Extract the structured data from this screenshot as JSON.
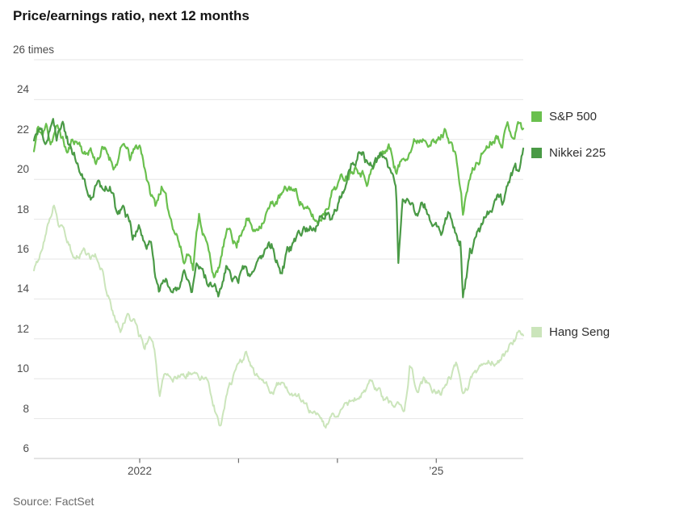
{
  "chart_data": {
    "type": "line",
    "title": "Price/earnings ratio, next 12 months",
    "grid": true,
    "legend_position": "right",
    "xlim": [
      2020.93,
      2025.88
    ],
    "ylim": [
      6,
      26
    ],
    "y_axis": {
      "ticks": [
        {
          "value": 26,
          "label": "26 times"
        },
        {
          "value": 24,
          "label": "24"
        },
        {
          "value": 22,
          "label": "22"
        },
        {
          "value": 20,
          "label": "20"
        },
        {
          "value": 18,
          "label": "18"
        },
        {
          "value": 16,
          "label": "16"
        },
        {
          "value": 14,
          "label": "14"
        },
        {
          "value": 12,
          "label": "12"
        },
        {
          "value": 10,
          "label": "10"
        },
        {
          "value": 8,
          "label": "8"
        },
        {
          "value": 6,
          "label": "6"
        }
      ]
    },
    "x_axis": {
      "ticks": [
        {
          "value": 2022,
          "label": "2022"
        },
        {
          "value": 2023,
          "label": ""
        },
        {
          "value": 2024,
          "label": ""
        },
        {
          "value": 2025,
          "label": "’25"
        }
      ]
    },
    "series": [
      {
        "id": "sp500",
        "name": "S&P 500",
        "color": "#6ac04e",
        "points": [
          [
            2020.93,
            21.4
          ],
          [
            2020.97,
            22.5
          ],
          [
            2021.02,
            22.2
          ],
          [
            2021.06,
            22.7
          ],
          [
            2021.1,
            21.9
          ],
          [
            2021.15,
            22.6
          ],
          [
            2021.2,
            22.3
          ],
          [
            2021.27,
            21.3
          ],
          [
            2021.33,
            22.0
          ],
          [
            2021.4,
            21.8
          ],
          [
            2021.45,
            21.2
          ],
          [
            2021.5,
            21.6
          ],
          [
            2021.55,
            20.9
          ],
          [
            2021.62,
            21.5
          ],
          [
            2021.68,
            21.2
          ],
          [
            2021.75,
            20.7
          ],
          [
            2021.8,
            21.3
          ],
          [
            2021.85,
            21.7
          ],
          [
            2021.9,
            21.0
          ],
          [
            2021.95,
            21.4
          ],
          [
            2022.0,
            21.7
          ],
          [
            2022.06,
            20.5
          ],
          [
            2022.1,
            19.4
          ],
          [
            2022.16,
            18.7
          ],
          [
            2022.22,
            19.7
          ],
          [
            2022.3,
            18.2
          ],
          [
            2022.38,
            17.3
          ],
          [
            2022.45,
            15.8
          ],
          [
            2022.5,
            16.6
          ],
          [
            2022.54,
            15.6
          ],
          [
            2022.6,
            18.3
          ],
          [
            2022.68,
            16.7
          ],
          [
            2022.74,
            15.4
          ],
          [
            2022.79,
            15.2
          ],
          [
            2022.86,
            16.9
          ],
          [
            2022.92,
            17.5
          ],
          [
            2022.98,
            16.7
          ],
          [
            2023.08,
            18.2
          ],
          [
            2023.16,
            17.3
          ],
          [
            2023.28,
            18.4
          ],
          [
            2023.42,
            19.1
          ],
          [
            2023.54,
            19.6
          ],
          [
            2023.64,
            18.9
          ],
          [
            2023.72,
            18.2
          ],
          [
            2023.8,
            17.8
          ],
          [
            2023.88,
            18.6
          ],
          [
            2023.96,
            19.6
          ],
          [
            2024.06,
            20.1
          ],
          [
            2024.2,
            20.9
          ],
          [
            2024.3,
            20.1
          ],
          [
            2024.44,
            21.2
          ],
          [
            2024.52,
            21.7
          ],
          [
            2024.6,
            20.4
          ],
          [
            2024.7,
            21.4
          ],
          [
            2024.78,
            21.9
          ],
          [
            2024.9,
            22.3
          ],
          [
            2025.0,
            21.8
          ],
          [
            2025.1,
            22.5
          ],
          [
            2025.16,
            21.8
          ],
          [
            2025.22,
            20.5
          ],
          [
            2025.27,
            18.3
          ],
          [
            2025.33,
            19.9
          ],
          [
            2025.4,
            20.7
          ],
          [
            2025.5,
            21.6
          ],
          [
            2025.6,
            22.3
          ],
          [
            2025.66,
            22.1
          ],
          [
            2025.72,
            22.7
          ],
          [
            2025.78,
            22.3
          ],
          [
            2025.84,
            22.9
          ],
          [
            2025.88,
            22.6
          ]
        ]
      },
      {
        "id": "nikkei225",
        "name": "Nikkei 225",
        "color": "#4a9a46",
        "points": [
          [
            2020.93,
            21.9
          ],
          [
            2020.98,
            22.6
          ],
          [
            2021.04,
            21.8
          ],
          [
            2021.08,
            22.4
          ],
          [
            2021.12,
            23.3
          ],
          [
            2021.16,
            22.2
          ],
          [
            2021.22,
            22.8
          ],
          [
            2021.28,
            21.8
          ],
          [
            2021.34,
            21.1
          ],
          [
            2021.4,
            20.3
          ],
          [
            2021.46,
            19.8
          ],
          [
            2021.52,
            19.3
          ],
          [
            2021.58,
            19.9
          ],
          [
            2021.64,
            19.2
          ],
          [
            2021.7,
            19.8
          ],
          [
            2021.76,
            18.4
          ],
          [
            2021.82,
            18.7
          ],
          [
            2021.88,
            17.9
          ],
          [
            2021.93,
            17.1
          ],
          [
            2022.0,
            17.4
          ],
          [
            2022.06,
            16.3
          ],
          [
            2022.11,
            16.9
          ],
          [
            2022.16,
            15.2
          ],
          [
            2022.2,
            14.2
          ],
          [
            2022.26,
            15.1
          ],
          [
            2022.32,
            14.5
          ],
          [
            2022.4,
            14.3
          ],
          [
            2022.46,
            15.1
          ],
          [
            2022.52,
            14.4
          ],
          [
            2022.58,
            15.6
          ],
          [
            2022.64,
            15.1
          ],
          [
            2022.72,
            14.6
          ],
          [
            2022.8,
            14.2
          ],
          [
            2022.88,
            15.7
          ],
          [
            2022.95,
            14.9
          ],
          [
            2023.04,
            15.4
          ],
          [
            2023.14,
            15.0
          ],
          [
            2023.24,
            15.9
          ],
          [
            2023.34,
            16.6
          ],
          [
            2023.42,
            15.4
          ],
          [
            2023.5,
            16.3
          ],
          [
            2023.6,
            16.8
          ],
          [
            2023.7,
            17.4
          ],
          [
            2023.8,
            17.9
          ],
          [
            2023.88,
            18.4
          ],
          [
            2023.94,
            18.0
          ],
          [
            2024.04,
            19.4
          ],
          [
            2024.14,
            20.8
          ],
          [
            2024.22,
            21.5
          ],
          [
            2024.32,
            20.6
          ],
          [
            2024.42,
            21.0
          ],
          [
            2024.5,
            21.3
          ],
          [
            2024.56,
            20.1
          ],
          [
            2024.595,
            19.7
          ],
          [
            2024.615,
            15.8
          ],
          [
            2024.66,
            18.9
          ],
          [
            2024.72,
            19.4
          ],
          [
            2024.8,
            18.4
          ],
          [
            2024.88,
            18.9
          ],
          [
            2024.96,
            18.0
          ],
          [
            2025.06,
            17.6
          ],
          [
            2025.12,
            18.1
          ],
          [
            2025.18,
            17.3
          ],
          [
            2025.245,
            16.9
          ],
          [
            2025.27,
            14.0
          ],
          [
            2025.34,
            16.3
          ],
          [
            2025.42,
            17.0
          ],
          [
            2025.5,
            18.0
          ],
          [
            2025.58,
            18.4
          ],
          [
            2025.62,
            19.3
          ],
          [
            2025.68,
            18.7
          ],
          [
            2025.74,
            19.7
          ],
          [
            2025.8,
            20.4
          ],
          [
            2025.84,
            20.1
          ],
          [
            2025.88,
            21.3
          ]
        ]
      },
      {
        "id": "hangseng",
        "name": "Hang Seng",
        "color": "#cbe5bb",
        "points": [
          [
            2020.93,
            15.5
          ],
          [
            2021.0,
            16.4
          ],
          [
            2021.05,
            17.3
          ],
          [
            2021.1,
            18.3
          ],
          [
            2021.13,
            18.8
          ],
          [
            2021.18,
            17.8
          ],
          [
            2021.24,
            17.2
          ],
          [
            2021.3,
            16.5
          ],
          [
            2021.36,
            16.2
          ],
          [
            2021.44,
            16.4
          ],
          [
            2021.5,
            15.9
          ],
          [
            2021.56,
            16.1
          ],
          [
            2021.62,
            15.4
          ],
          [
            2021.66,
            14.5
          ],
          [
            2021.72,
            13.4
          ],
          [
            2021.78,
            12.9
          ],
          [
            2021.82,
            12.5
          ],
          [
            2021.88,
            13.1
          ],
          [
            2021.94,
            12.8
          ],
          [
            2022.0,
            12.0
          ],
          [
            2022.05,
            11.7
          ],
          [
            2022.1,
            12.2
          ],
          [
            2022.15,
            11.5
          ],
          [
            2022.2,
            9.0
          ],
          [
            2022.26,
            10.4
          ],
          [
            2022.32,
            9.7
          ],
          [
            2022.4,
            10.0
          ],
          [
            2022.48,
            10.3
          ],
          [
            2022.55,
            10.5
          ],
          [
            2022.62,
            10.1
          ],
          [
            2022.7,
            9.9
          ],
          [
            2022.76,
            8.6
          ],
          [
            2022.82,
            7.6
          ],
          [
            2022.88,
            9.1
          ],
          [
            2022.96,
            10.2
          ],
          [
            2023.07,
            11.2
          ],
          [
            2023.16,
            10.2
          ],
          [
            2023.22,
            10.0
          ],
          [
            2023.32,
            9.6
          ],
          [
            2023.44,
            9.9
          ],
          [
            2023.52,
            9.5
          ],
          [
            2023.62,
            9.1
          ],
          [
            2023.72,
            8.6
          ],
          [
            2023.8,
            8.6
          ],
          [
            2023.87,
            7.7
          ],
          [
            2023.96,
            8.2
          ],
          [
            2024.06,
            8.4
          ],
          [
            2024.16,
            8.8
          ],
          [
            2024.26,
            9.4
          ],
          [
            2024.36,
            9.8
          ],
          [
            2024.46,
            9.1
          ],
          [
            2024.56,
            8.6
          ],
          [
            2024.68,
            8.4
          ],
          [
            2024.73,
            10.7
          ],
          [
            2024.8,
            9.5
          ],
          [
            2024.88,
            9.9
          ],
          [
            2024.96,
            9.4
          ],
          [
            2025.04,
            9.3
          ],
          [
            2025.12,
            10.0
          ],
          [
            2025.2,
            10.6
          ],
          [
            2025.27,
            9.3
          ],
          [
            2025.36,
            10.1
          ],
          [
            2025.46,
            10.4
          ],
          [
            2025.56,
            10.9
          ],
          [
            2025.64,
            11.0
          ],
          [
            2025.72,
            11.4
          ],
          [
            2025.79,
            11.9
          ],
          [
            2025.83,
            12.4
          ],
          [
            2025.88,
            12.0
          ]
        ]
      }
    ]
  },
  "source": {
    "text": "Source: FactSet"
  }
}
